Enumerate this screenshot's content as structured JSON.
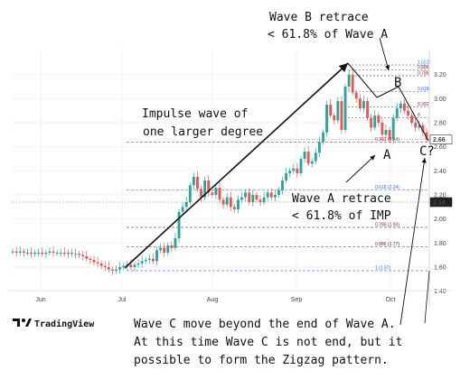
{
  "chart_data": {
    "type": "candlestick",
    "x_ticks": [
      "Jun",
      "Jul",
      "Aug",
      "Sep",
      "Oct"
    ],
    "y_ticks": [
      "3.20",
      "3.00",
      "2.80",
      "2.60",
      "2.40",
      "2.20",
      "2.00",
      "1.80",
      "1.60",
      "1.40"
    ],
    "ylim": [
      1.33,
      3.37
    ],
    "price_badges": [
      "2.66",
      "2.14"
    ],
    "closes": [
      1.73,
      1.72,
      1.73,
      1.72,
      1.72,
      1.71,
      1.72,
      1.72,
      1.71,
      1.72,
      1.73,
      1.72,
      1.72,
      1.72,
      1.71,
      1.72,
      1.71,
      1.71,
      1.7,
      1.69,
      1.67,
      1.66,
      1.64,
      1.63,
      1.61,
      1.6,
      1.58,
      1.57,
      1.58,
      1.6,
      1.61,
      1.62,
      1.6,
      1.62,
      1.63,
      1.65,
      1.66,
      1.67,
      1.65,
      1.74,
      1.76,
      1.72,
      1.78,
      1.76,
      1.84,
      2.06,
      2.1,
      2.14,
      2.28,
      2.35,
      2.25,
      2.18,
      2.32,
      2.22,
      2.2,
      2.26,
      2.16,
      2.12,
      2.18,
      2.1,
      2.08,
      2.16,
      2.18,
      2.22,
      2.14,
      2.2,
      2.16,
      2.14,
      2.18,
      2.22,
      2.18,
      2.2,
      2.24,
      2.32,
      2.38,
      2.4,
      2.42,
      2.38,
      2.5,
      2.56,
      2.46,
      2.48,
      2.55,
      2.64,
      2.72,
      2.95,
      2.86,
      2.82,
      2.98,
      2.74,
      3.1,
      3.2,
      3.05,
      3.0,
      2.92,
      2.98,
      2.84,
      2.76,
      2.86,
      2.8,
      2.7,
      2.74,
      2.66,
      2.84,
      2.92,
      2.96,
      2.9,
      2.86,
      2.8,
      2.76,
      2.78,
      2.72,
      2.66
    ],
    "fib_levels": [
      {
        "price": 3.28,
        "label": "1 (3.2..",
        "color": "#2962ff"
      },
      {
        "price": 3.24,
        "label": "0.886",
        "color": "#7b1f2b"
      },
      {
        "price": 3.19,
        "label": "0.786",
        "color": "#7b1f2b"
      },
      {
        "price": 3.06,
        "label": "0.618",
        "color": "#2962ff"
      },
      {
        "price": 2.93,
        "label": "0.382",
        "color": "#7b1f2b"
      },
      {
        "price": 2.84,
        "label": "0",
        "color": "#7b1f2b"
      },
      {
        "price": 2.64,
        "label": "0.382 (2.64)",
        "color": "#7b1f2b"
      },
      {
        "price": 2.24,
        "label": "0.618 (2.24)",
        "color": "#2962ff"
      },
      {
        "price": 1.93,
        "label": "0.786 (1.93)",
        "color": "#7b1f2b"
      },
      {
        "price": 1.77,
        "label": "0.886 (1.77)",
        "color": "#7b1f2b"
      },
      {
        "price": 1.57,
        "label": "1 (1.57)",
        "color": "#2962ff"
      }
    ],
    "annotations": {
      "impulse_line1": "Impulse wave of",
      "impulse_line2": "one larger degree",
      "waveB_line1": "Wave B retrace",
      "waveB_line2": "< 61.8% of Wave A",
      "waveA_line1": "Wave A retrace",
      "waveA_line2": "< 61.8% of IMP",
      "label_B": "B",
      "label_A": "A",
      "label_C": "C?",
      "bottom_line1": "Wave C move beyond the end of Wave A.",
      "bottom_line2": "At this time Wave C is not end, but it",
      "bottom_line3": "possible to form the Zigzag pattern."
    },
    "watermark": "TradingView",
    "colors": {
      "up": "#26a69a",
      "down": "#ef5350"
    }
  }
}
